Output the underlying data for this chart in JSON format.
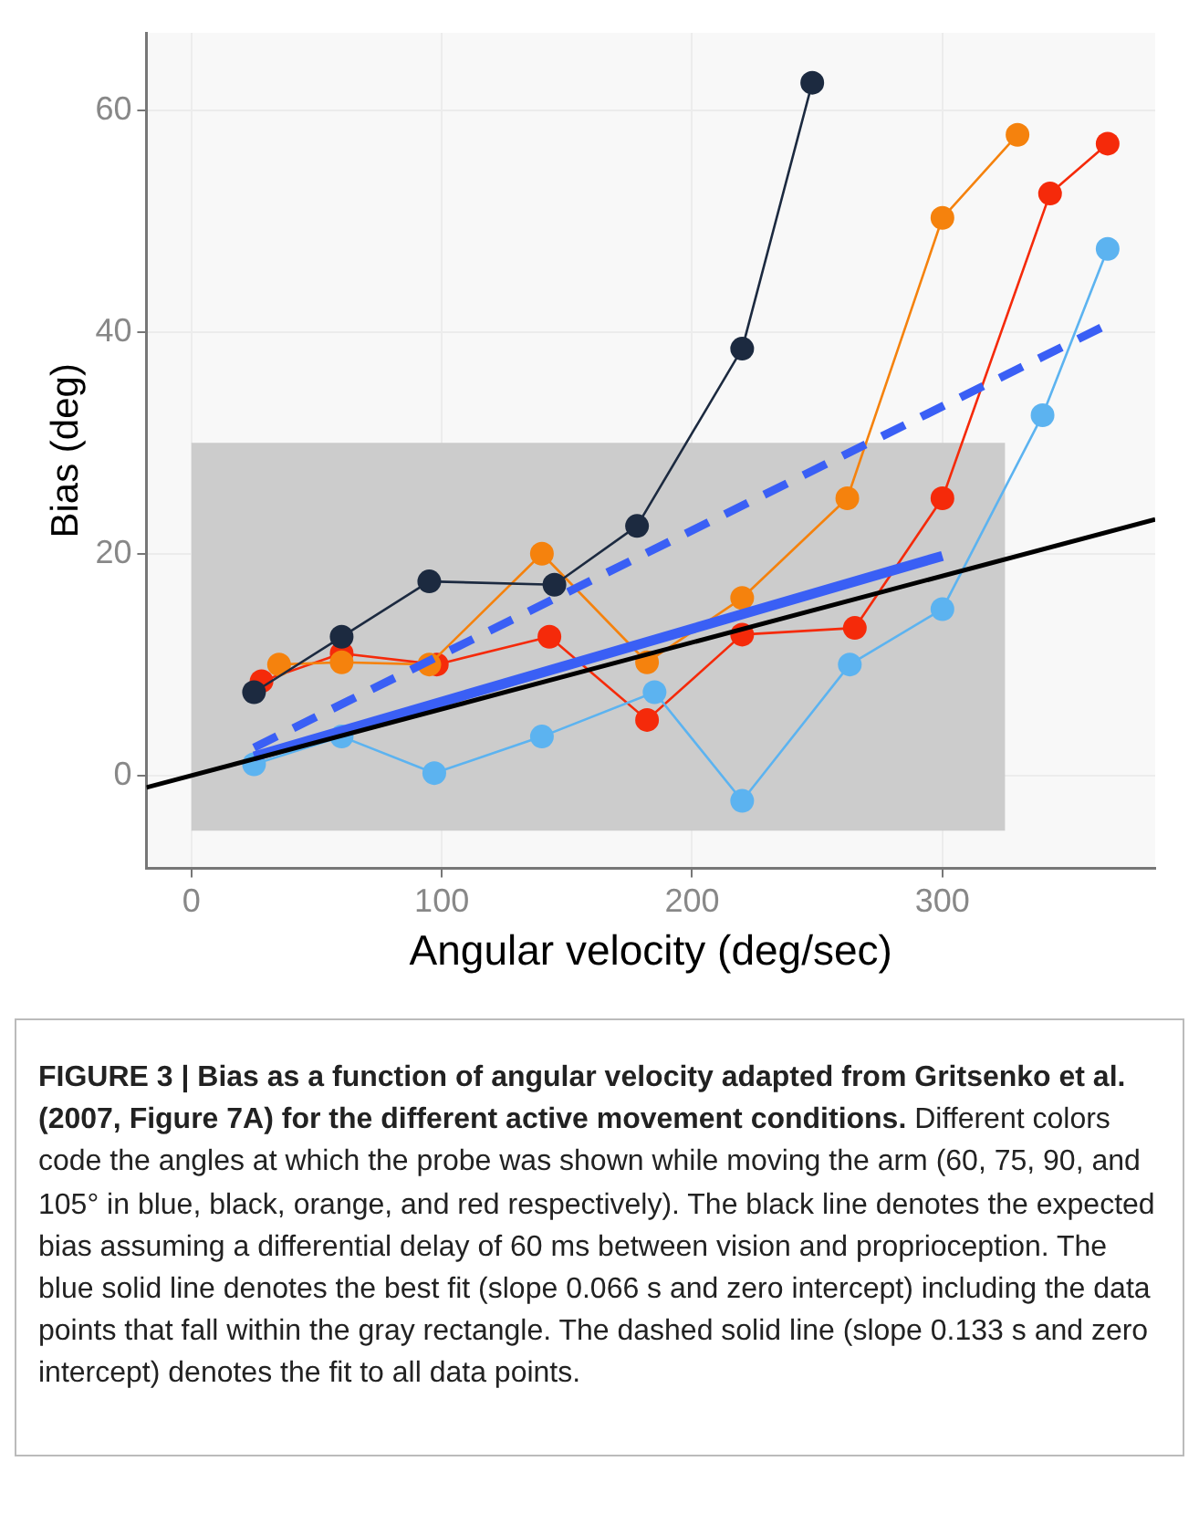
{
  "chart_data": {
    "type": "line",
    "xlabel": "Angular velocity (deg/sec)",
    "ylabel": "Bias (deg)",
    "xlim": [
      -18,
      385
    ],
    "xticks": [
      0,
      100,
      200,
      300
    ],
    "ylim": [
      -8.4,
      67
    ],
    "yticks": [
      0,
      20,
      40,
      60
    ],
    "grid": true,
    "legend": false,
    "marker": "circle",
    "series": [
      {
        "type": "histogram",
        "color": "#cccccc",
        "bins": [
          0,
          325
        ],
        "base": [
          -5
        ],
        "values": [
          35
        ]
      },
      {
        "color": "#5cb3f0",
        "x": [
          25,
          60,
          97,
          140,
          185,
          220,
          263,
          300,
          340,
          366
        ],
        "values": [
          1,
          3.5,
          0.2,
          3.5,
          7.5,
          -2.3,
          10,
          15,
          32.5,
          47.5
        ]
      },
      {
        "color": "#1c2a40",
        "x": [
          25,
          60,
          95,
          145,
          178,
          220,
          248
        ],
        "values": [
          7.5,
          12.5,
          17.5,
          17.2,
          22.5,
          38.5,
          62.5
        ]
      },
      {
        "color": "#f5820d",
        "x": [
          35,
          60,
          95,
          140,
          182,
          220,
          262,
          300,
          330
        ],
        "values": [
          10,
          10.2,
          10,
          20,
          10.2,
          16,
          25,
          50.3,
          57.8
        ]
      },
      {
        "color": "#f52a0a",
        "x": [
          28,
          60,
          98,
          143,
          182,
          220,
          265,
          300,
          343,
          366
        ],
        "values": [
          8.5,
          11,
          10,
          12.5,
          5,
          12.7,
          13.3,
          25,
          52.5,
          57
        ]
      },
      {
        "color": "#000000",
        "x": [
          -18,
          385
        ],
        "values": [
          -1.1,
          23.1
        ],
        "marker": "none"
      },
      {
        "color": "#3a5ff5",
        "x": [
          25,
          300
        ],
        "values": [
          1.7,
          19.8
        ],
        "marker": "none"
      },
      {
        "color": "#3a5ff5",
        "x": [
          25,
          367
        ],
        "values": [
          2.5,
          40.8
        ],
        "marker": "none",
        "line_style": "dashed"
      }
    ],
    "annotations": [
      "FIGURE 3 | Bias as a function of angular velocity adapted from Gritsenko et al. (2007, Figure 7A) for the different active movement conditions.",
      "Different colors code the angles at which the probe was shown while moving the arm (60, 75, 90, and 105° in blue, black, orange, and red respectively). The black line denotes the expected bias assuming a differential delay of 60 ms between vision and proprioception. The blue solid line denotes the best fit (slope 0.066 s and zero intercept) including the data points that fall within the gray rectangle. The dashed solid line (slope 0.133 s and zero intercept) denotes the fit to all data points."
    ]
  }
}
